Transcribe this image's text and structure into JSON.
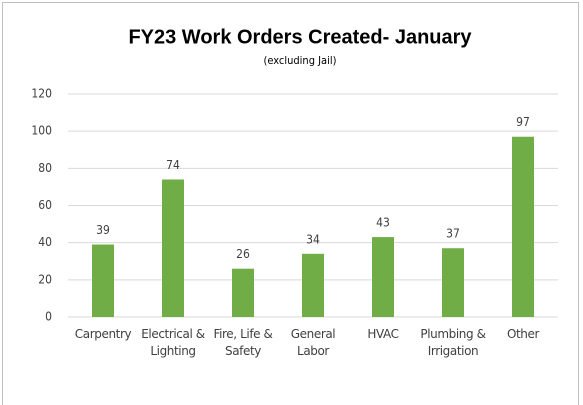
{
  "chart_data": {
    "type": "bar",
    "title": "FY23 Work Orders Created- January",
    "subtitle": "(excluding Jail)",
    "categories": [
      "Carpentry",
      "Electrical & Lighting",
      "Fire, Life & Safety",
      "General Labor",
      "HVAC",
      "Plumbing & Irrigation",
      "Other"
    ],
    "values": [
      39,
      74,
      26,
      34,
      43,
      37,
      97
    ],
    "color": "#70ad47",
    "ylim": [
      0,
      120
    ],
    "yticks": [
      0,
      20,
      40,
      60,
      80,
      100,
      120
    ],
    "grid": true
  }
}
